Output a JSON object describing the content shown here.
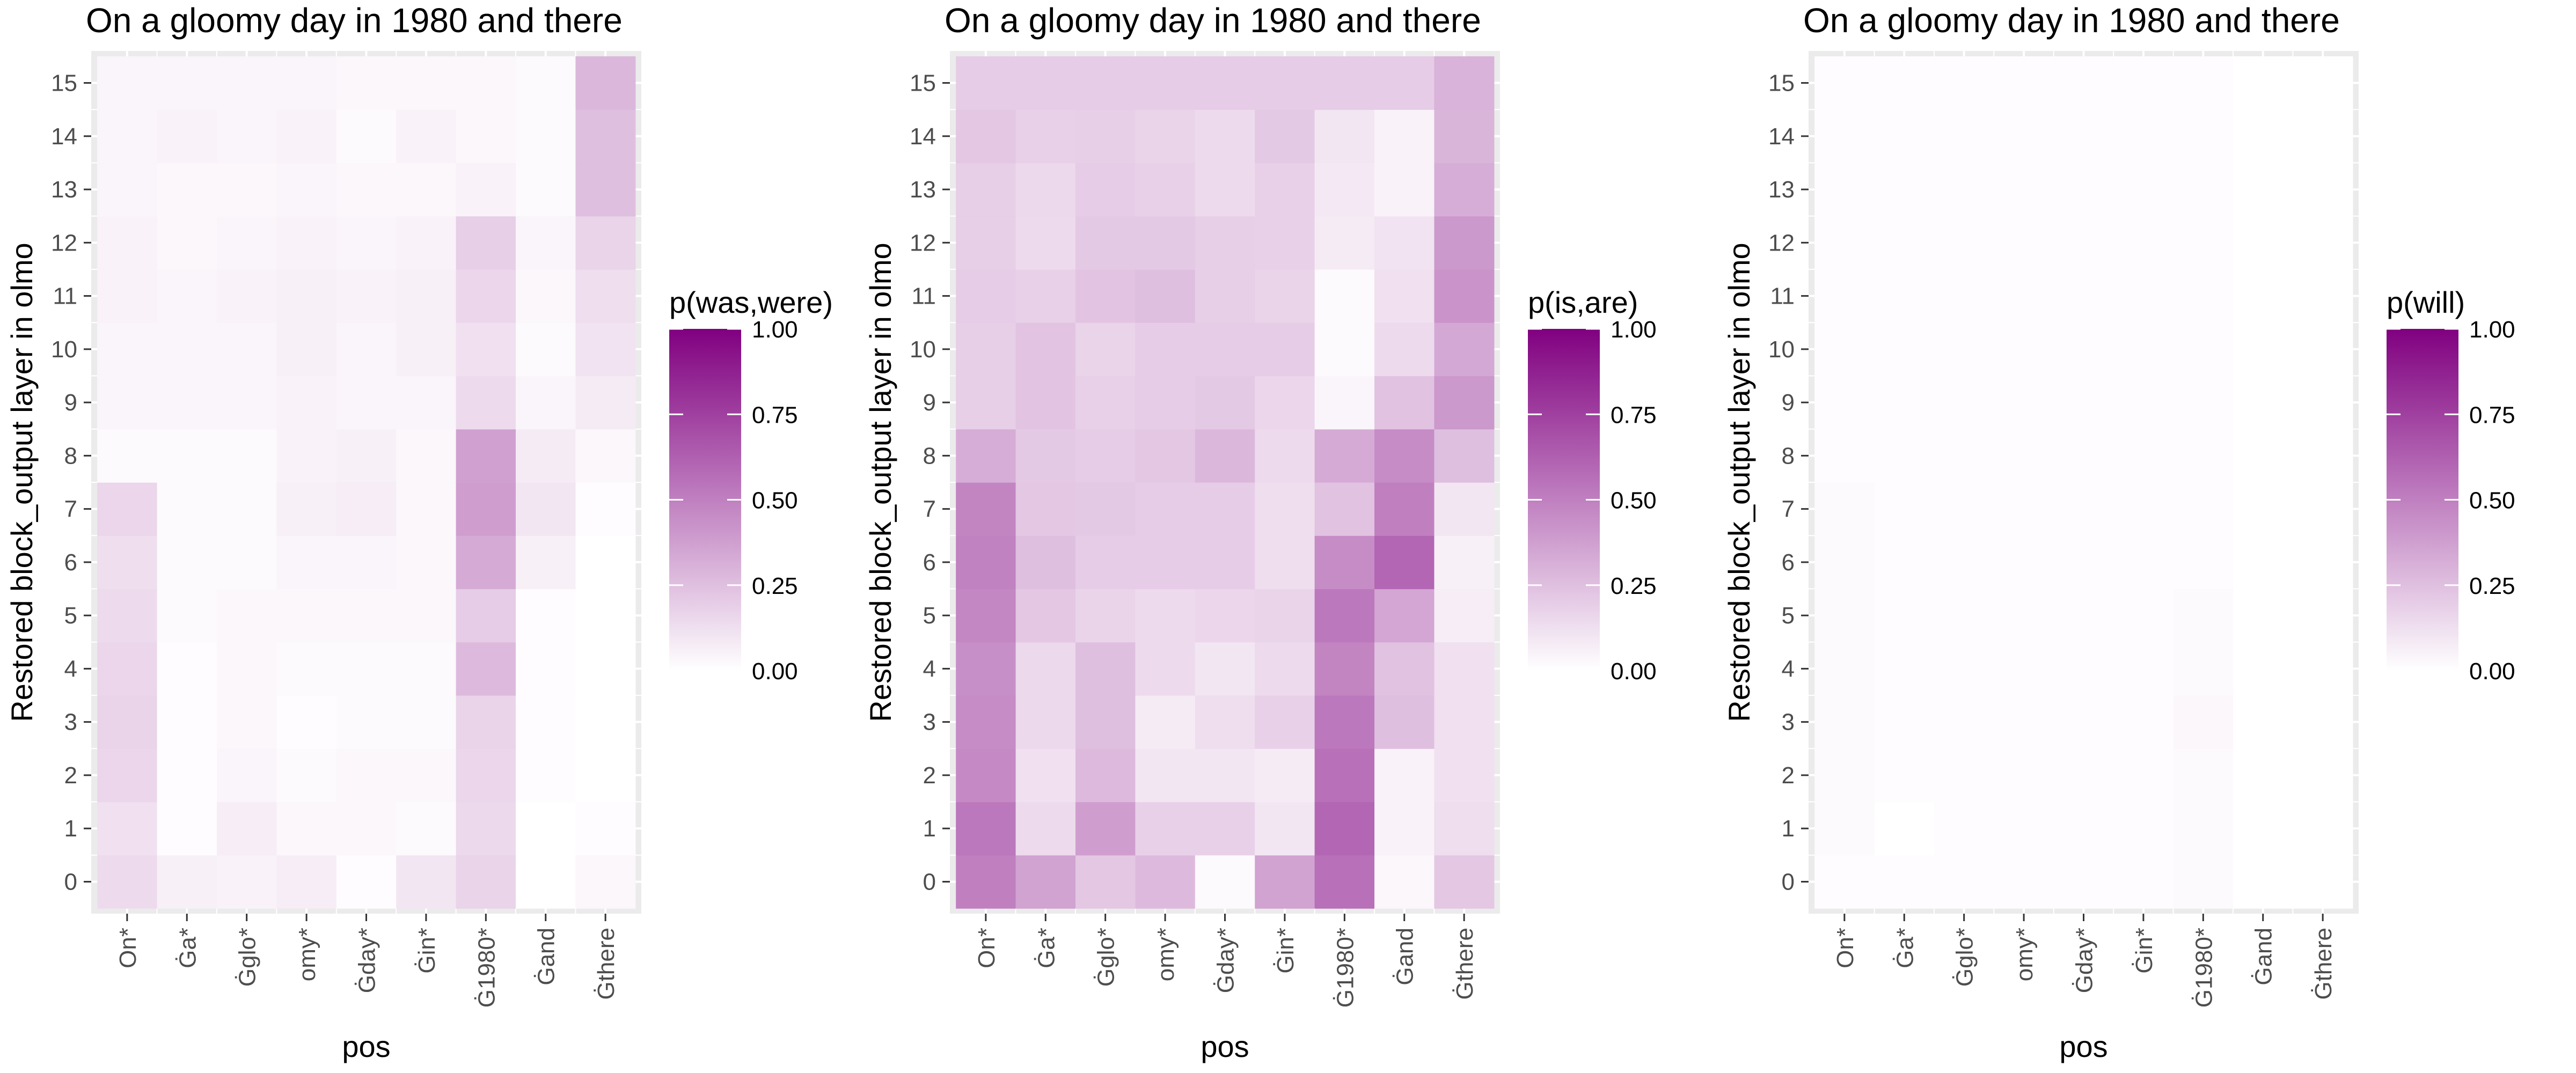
{
  "chart_data": [
    {
      "type": "heatmap",
      "title": "On a gloomy day in 1980 and there",
      "xlabel": "pos",
      "ylabel": "Restored block_output layer in olmo",
      "x_categories": [
        "On*",
        "Ġa*",
        "Ġglo*",
        "omy*",
        "Ġday*",
        "Ġin*",
        "Ġ1980*",
        "Ġand",
        "Ġthere"
      ],
      "y_categories": [
        "0",
        "1",
        "2",
        "3",
        "4",
        "5",
        "6",
        "7",
        "8",
        "9",
        "10",
        "11",
        "12",
        "13",
        "14",
        "15"
      ],
      "legend_title": "p(was,were)",
      "legend_ticks": [
        "1.00",
        "0.75",
        "0.50",
        "0.25",
        "0.00"
      ],
      "scale": {
        "low": "#ffffff",
        "high": "#800080",
        "min": 0,
        "max": 1
      },
      "values": [
        [
          0.14,
          0.06,
          0.05,
          0.07,
          0.01,
          0.1,
          0.17,
          0.0,
          0.03
        ],
        [
          0.12,
          0.01,
          0.07,
          0.03,
          0.03,
          0.02,
          0.15,
          0.0,
          0.01
        ],
        [
          0.16,
          0.01,
          0.04,
          0.02,
          0.03,
          0.03,
          0.16,
          0.01,
          0.0
        ],
        [
          0.17,
          0.01,
          0.03,
          0.01,
          0.02,
          0.02,
          0.17,
          0.01,
          0.0
        ],
        [
          0.16,
          0.01,
          0.03,
          0.02,
          0.02,
          0.02,
          0.27,
          0.01,
          0.0
        ],
        [
          0.14,
          0.02,
          0.03,
          0.03,
          0.03,
          0.03,
          0.2,
          0.01,
          0.0
        ],
        [
          0.13,
          0.02,
          0.02,
          0.04,
          0.04,
          0.03,
          0.33,
          0.06,
          0.0
        ],
        [
          0.16,
          0.02,
          0.02,
          0.06,
          0.07,
          0.03,
          0.38,
          0.1,
          0.01
        ],
        [
          0.02,
          0.02,
          0.02,
          0.05,
          0.06,
          0.03,
          0.37,
          0.08,
          0.03
        ],
        [
          0.04,
          0.04,
          0.04,
          0.05,
          0.04,
          0.04,
          0.14,
          0.04,
          0.08
        ],
        [
          0.04,
          0.04,
          0.04,
          0.06,
          0.04,
          0.06,
          0.12,
          0.02,
          0.11
        ],
        [
          0.05,
          0.04,
          0.05,
          0.06,
          0.05,
          0.06,
          0.16,
          0.03,
          0.13
        ],
        [
          0.05,
          0.03,
          0.04,
          0.05,
          0.04,
          0.05,
          0.19,
          0.04,
          0.17
        ],
        [
          0.04,
          0.03,
          0.03,
          0.04,
          0.03,
          0.03,
          0.05,
          0.02,
          0.25
        ],
        [
          0.04,
          0.05,
          0.04,
          0.05,
          0.02,
          0.05,
          0.03,
          0.02,
          0.25
        ],
        [
          0.04,
          0.04,
          0.04,
          0.04,
          0.03,
          0.03,
          0.03,
          0.02,
          0.28
        ]
      ]
    },
    {
      "type": "heatmap",
      "title": "On a gloomy day in 1980 and there",
      "xlabel": "pos",
      "ylabel": "Restored block_output layer in olmo",
      "x_categories": [
        "On*",
        "Ġa*",
        "Ġglo*",
        "omy*",
        "Ġday*",
        "Ġin*",
        "Ġ1980*",
        "Ġand",
        "Ġthere"
      ],
      "y_categories": [
        "0",
        "1",
        "2",
        "3",
        "4",
        "5",
        "6",
        "7",
        "8",
        "9",
        "10",
        "11",
        "12",
        "13",
        "14",
        "15"
      ],
      "legend_title": "p(is,are)",
      "legend_ticks": [
        "1.00",
        "0.75",
        "0.50",
        "0.25",
        "0.00"
      ],
      "scale": {
        "low": "#ffffff",
        "high": "#800080",
        "min": 0,
        "max": 1
      },
      "values": [
        [
          0.5,
          0.36,
          0.22,
          0.27,
          0.02,
          0.36,
          0.56,
          0.03,
          0.22
        ],
        [
          0.53,
          0.14,
          0.38,
          0.18,
          0.18,
          0.1,
          0.6,
          0.05,
          0.13
        ],
        [
          0.46,
          0.12,
          0.27,
          0.1,
          0.1,
          0.08,
          0.56,
          0.05,
          0.12
        ],
        [
          0.45,
          0.15,
          0.25,
          0.08,
          0.13,
          0.18,
          0.53,
          0.25,
          0.12
        ],
        [
          0.44,
          0.15,
          0.25,
          0.14,
          0.1,
          0.14,
          0.48,
          0.24,
          0.12
        ],
        [
          0.47,
          0.22,
          0.17,
          0.14,
          0.16,
          0.17,
          0.53,
          0.35,
          0.07
        ],
        [
          0.49,
          0.25,
          0.2,
          0.2,
          0.2,
          0.13,
          0.45,
          0.6,
          0.06
        ],
        [
          0.48,
          0.22,
          0.21,
          0.2,
          0.2,
          0.13,
          0.24,
          0.5,
          0.1
        ],
        [
          0.32,
          0.21,
          0.2,
          0.22,
          0.28,
          0.14,
          0.33,
          0.45,
          0.25
        ],
        [
          0.19,
          0.23,
          0.18,
          0.2,
          0.21,
          0.16,
          0.04,
          0.24,
          0.4
        ],
        [
          0.19,
          0.23,
          0.17,
          0.2,
          0.2,
          0.2,
          0.02,
          0.14,
          0.34
        ],
        [
          0.2,
          0.18,
          0.23,
          0.25,
          0.19,
          0.17,
          0.02,
          0.12,
          0.42
        ],
        [
          0.19,
          0.14,
          0.21,
          0.21,
          0.19,
          0.18,
          0.08,
          0.11,
          0.4
        ],
        [
          0.19,
          0.15,
          0.2,
          0.18,
          0.14,
          0.18,
          0.09,
          0.05,
          0.32
        ],
        [
          0.22,
          0.18,
          0.19,
          0.17,
          0.14,
          0.21,
          0.1,
          0.05,
          0.29
        ],
        [
          0.2,
          0.2,
          0.2,
          0.2,
          0.2,
          0.2,
          0.2,
          0.2,
          0.3
        ]
      ]
    },
    {
      "type": "heatmap",
      "title": "On a gloomy day in 1980 and there",
      "xlabel": "pos",
      "ylabel": "Restored block_output layer in olmo",
      "x_categories": [
        "On*",
        "Ġa*",
        "Ġglo*",
        "omy*",
        "Ġday*",
        "Ġin*",
        "Ġ1980*",
        "Ġand",
        "Ġthere"
      ],
      "y_categories": [
        "0",
        "1",
        "2",
        "3",
        "4",
        "5",
        "6",
        "7",
        "8",
        "9",
        "10",
        "11",
        "12",
        "13",
        "14",
        "15"
      ],
      "legend_title": "p(will)",
      "legend_ticks": [
        "1.00",
        "0.75",
        "0.50",
        "0.25",
        "0.00"
      ],
      "scale": {
        "low": "#ffffff",
        "high": "#800080",
        "min": 0,
        "max": 1
      },
      "values": [
        [
          0.01,
          0.01,
          0.01,
          0.01,
          0.01,
          0.01,
          0.02,
          0.0,
          0.0
        ],
        [
          0.02,
          0.0,
          0.01,
          0.01,
          0.01,
          0.01,
          0.02,
          0.0,
          0.0
        ],
        [
          0.02,
          0.01,
          0.01,
          0.01,
          0.01,
          0.01,
          0.02,
          0.0,
          0.0
        ],
        [
          0.02,
          0.01,
          0.01,
          0.01,
          0.01,
          0.01,
          0.03,
          0.0,
          0.0
        ],
        [
          0.02,
          0.01,
          0.01,
          0.01,
          0.01,
          0.01,
          0.02,
          0.0,
          0.0
        ],
        [
          0.02,
          0.01,
          0.01,
          0.01,
          0.01,
          0.01,
          0.02,
          0.0,
          0.0
        ],
        [
          0.02,
          0.01,
          0.01,
          0.01,
          0.01,
          0.01,
          0.01,
          0.0,
          0.0
        ],
        [
          0.02,
          0.01,
          0.01,
          0.01,
          0.01,
          0.01,
          0.01,
          0.0,
          0.0
        ],
        [
          0.01,
          0.01,
          0.01,
          0.01,
          0.01,
          0.01,
          0.01,
          0.0,
          0.0
        ],
        [
          0.01,
          0.01,
          0.01,
          0.01,
          0.01,
          0.01,
          0.01,
          0.0,
          0.0
        ],
        [
          0.01,
          0.01,
          0.01,
          0.01,
          0.01,
          0.01,
          0.01,
          0.0,
          0.0
        ],
        [
          0.01,
          0.01,
          0.01,
          0.01,
          0.01,
          0.01,
          0.01,
          0.0,
          0.0
        ],
        [
          0.01,
          0.01,
          0.01,
          0.01,
          0.01,
          0.01,
          0.01,
          0.0,
          0.0
        ],
        [
          0.01,
          0.01,
          0.01,
          0.01,
          0.01,
          0.01,
          0.01,
          0.0,
          0.0
        ],
        [
          0.01,
          0.01,
          0.01,
          0.01,
          0.01,
          0.01,
          0.01,
          0.0,
          0.0
        ],
        [
          0.01,
          0.01,
          0.01,
          0.01,
          0.01,
          0.01,
          0.01,
          0.0,
          0.0
        ]
      ]
    }
  ]
}
